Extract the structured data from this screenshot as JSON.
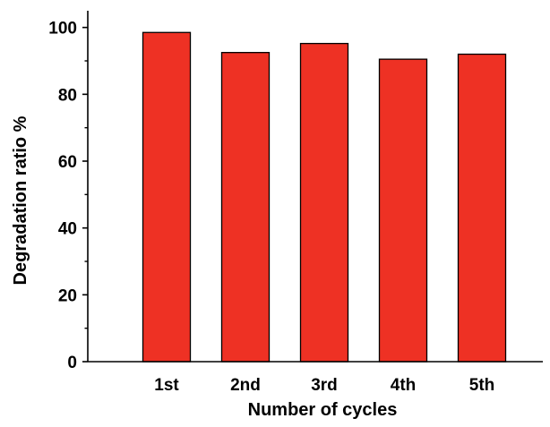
{
  "chart_data": {
    "type": "bar",
    "title": "",
    "xlabel": "Number of cycles",
    "ylabel": "Degradation ratio %",
    "categories": [
      "1st",
      "2nd",
      "3rd",
      "4th",
      "5th"
    ],
    "values": [
      98.5,
      92.5,
      95.2,
      90.5,
      92.0
    ],
    "ylim": [
      0,
      105
    ],
    "yticks": [
      0,
      20,
      40,
      60,
      80,
      100
    ],
    "yticks_minor": [
      10,
      30,
      50,
      70,
      90
    ],
    "bar_color": "#ee3124",
    "bar_edge_color": "#000000",
    "grid": false,
    "legend": "none"
  }
}
